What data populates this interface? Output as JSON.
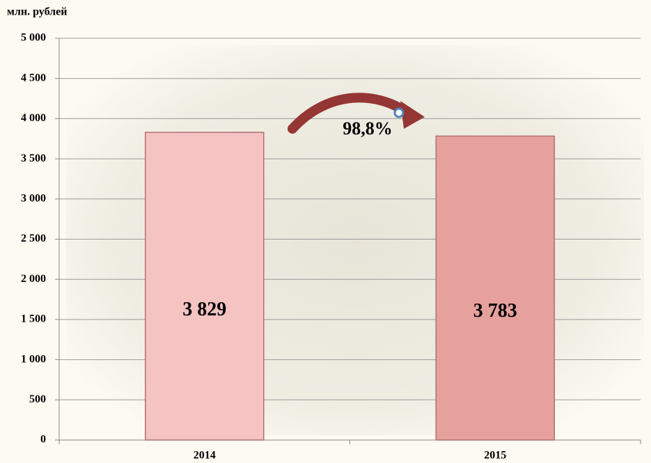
{
  "chart_data": {
    "type": "bar",
    "y_axis_label": "млн. рублей",
    "categories": [
      "2014",
      "2015"
    ],
    "values": [
      3829,
      3783
    ],
    "value_labels": [
      "3 829",
      "3 783"
    ],
    "colors": [
      "#f4c3c2",
      "#e6a19d"
    ],
    "annotation": "98,8%",
    "ylim": [
      0,
      5000
    ],
    "yticks": [
      0,
      500,
      {
        "value": 1000,
        "label": "1 000"
      },
      {
        "value": 1500,
        "label": "1 500"
      },
      {
        "value": 2000,
        "label": "2 000"
      },
      {
        "value": 2500,
        "label": "2 500"
      },
      {
        "value": 3000,
        "label": "3 000"
      },
      {
        "value": 3500,
        "label": "3 500"
      },
      {
        "value": 4000,
        "label": "4 000"
      },
      {
        "value": 4500,
        "label": "4 500"
      },
      {
        "value": 5000,
        "label": "5 000"
      }
    ],
    "grid": true
  }
}
